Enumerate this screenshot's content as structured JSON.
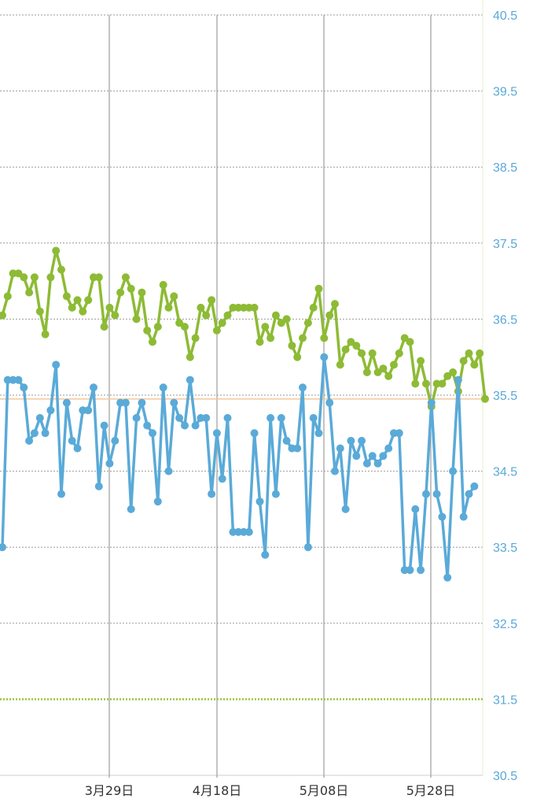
{
  "chart_data": {
    "type": "line",
    "x_axis": {
      "tick_labels": [
        "3月29日",
        "4月18日",
        "5月08日",
        "5月28日"
      ]
    },
    "y_axis": {
      "min": 30.5,
      "max": 40.5,
      "tick_values": [
        40.5,
        39.5,
        38.5,
        37.5,
        36.5,
        35.5,
        34.5,
        33.5,
        32.5,
        31.5,
        30.5
      ],
      "tick_labels": [
        "40.5",
        "39.5",
        "38.5",
        "37.5",
        "36.5",
        "35.5",
        "34.5",
        "33.5",
        "32.5",
        "31.5",
        "30.5"
      ],
      "position": "right"
    },
    "reference_lines": [
      {
        "value": 35.45,
        "color": "#f5c89a",
        "style": "solid"
      },
      {
        "value": 31.5,
        "color": "#9bc23c",
        "style": "dotted"
      }
    ],
    "grid": true,
    "legend": "none",
    "series": [
      {
        "color": "#8dbb35",
        "values": [
          36.55,
          36.8,
          37.1,
          37.1,
          37.05,
          36.85,
          37.05,
          36.6,
          36.3,
          37.05,
          37.4,
          37.15,
          36.8,
          36.65,
          36.75,
          36.6,
          36.75,
          37.05,
          37.05,
          36.4,
          36.65,
          36.55,
          36.85,
          37.05,
          36.9,
          36.5,
          36.85,
          36.35,
          36.2,
          36.4,
          36.95,
          36.65,
          36.8,
          36.45,
          36.4,
          36.0,
          36.25,
          36.65,
          36.55,
          36.75,
          36.35,
          36.45,
          36.55,
          36.65,
          36.65,
          36.65,
          36.65,
          36.65,
          36.2,
          36.4,
          36.25,
          36.55,
          36.45,
          36.5,
          36.15,
          36.0,
          36.25,
          36.45,
          36.65,
          36.9,
          36.25,
          36.55,
          36.7,
          35.9,
          36.1,
          36.2,
          36.15,
          36.05,
          35.8,
          36.05,
          35.8,
          35.85,
          35.75,
          35.9,
          36.05,
          36.25,
          36.2,
          35.65,
          35.95,
          35.65,
          35.35,
          35.65,
          35.65,
          35.75,
          35.8,
          35.55,
          35.95,
          36.05,
          35.9,
          36.05,
          35.45
        ]
      },
      {
        "color": "#5aaad8",
        "values": [
          33.5,
          35.7,
          35.7,
          35.7,
          35.6,
          34.9,
          35.0,
          35.2,
          35.0,
          35.3,
          35.9,
          34.2,
          35.4,
          34.9,
          34.8,
          35.3,
          35.3,
          35.6,
          34.3,
          35.1,
          34.6,
          34.9,
          35.4,
          35.4,
          34.0,
          35.2,
          35.4,
          35.1,
          35.0,
          34.1,
          35.6,
          34.5,
          35.4,
          35.2,
          35.1,
          35.7,
          35.1,
          35.2,
          35.2,
          34.2,
          35.0,
          34.4,
          35.2,
          33.7,
          33.7,
          33.7,
          33.7,
          35.0,
          34.1,
          33.4,
          35.2,
          34.2,
          35.2,
          34.9,
          34.8,
          34.8,
          35.6,
          33.5,
          35.2,
          35.0,
          36.0,
          35.4,
          34.5,
          34.8,
          34.0,
          34.9,
          34.7,
          34.9,
          34.6,
          34.7,
          34.6,
          34.7,
          34.8,
          35.0,
          35.0,
          33.2,
          33.2,
          34.0,
          33.2,
          34.2,
          35.4,
          34.2,
          33.9,
          33.1,
          34.5,
          35.7,
          33.9,
          34.2,
          34.3
        ]
      }
    ]
  }
}
